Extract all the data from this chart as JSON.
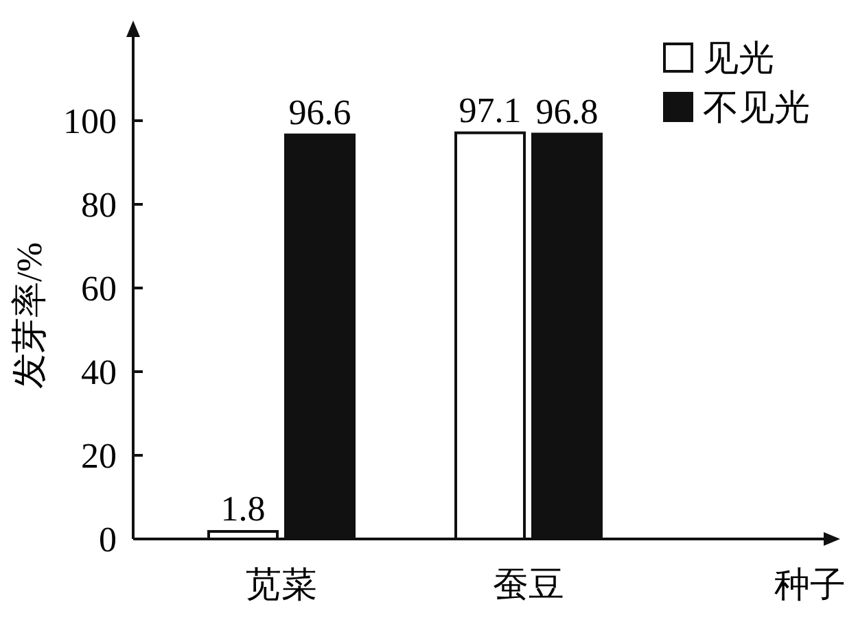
{
  "chart_data": {
    "type": "bar",
    "ylabel": "发芽率/%",
    "xlabel": "种子",
    "categories": [
      "苋菜",
      "蚕豆"
    ],
    "series": [
      {
        "name": "见光",
        "color": "#ffffff",
        "values": [
          1.8,
          97.1
        ]
      },
      {
        "name": "不见光",
        "color": "#111111",
        "values": [
          96.6,
          96.8
        ]
      }
    ],
    "ylim": [
      0,
      120
    ],
    "yticks": [
      0,
      20,
      40,
      60,
      80,
      100
    ],
    "data_labels": true,
    "legend": "top right",
    "grid": false
  }
}
